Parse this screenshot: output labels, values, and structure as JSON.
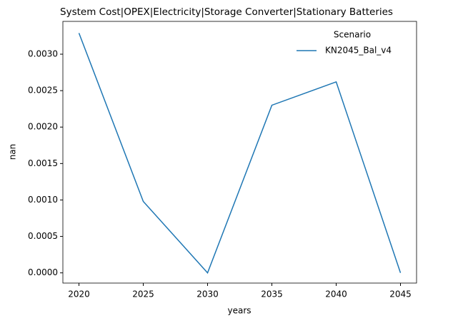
{
  "chart_data": {
    "type": "line",
    "title": "System Cost|OPEX|Electricity|Storage Converter|Stationary Batteries",
    "x_label": "years",
    "y_label": "nan",
    "x": [
      2020,
      2025,
      2030,
      2035,
      2040,
      2045
    ],
    "series": [
      {
        "name": "KN2045_Bal_v4",
        "color": "#1f77b4",
        "values": [
          0.00329,
          0.00098,
          0,
          0.0023,
          0.00262,
          0
        ]
      }
    ],
    "legend_title": "Scenario",
    "legend": "upper right",
    "xlim": [
      2018.75,
      2046.25
    ],
    "xticks": [
      2020,
      2025,
      2030,
      2035,
      2040,
      2045
    ],
    "ylim": [
      -0.00014,
      0.00345
    ],
    "yticks": [
      {
        "value": 0,
        "label": "0.0000"
      },
      {
        "value": 0.0005,
        "label": "0.0005"
      },
      {
        "value": 0.001,
        "label": "0.0010"
      },
      {
        "value": 0.0015,
        "label": "0.0015"
      },
      {
        "value": 0.002,
        "label": "0.0020"
      },
      {
        "value": 0.0025,
        "label": "0.0025"
      },
      {
        "value": 0.003,
        "label": "0.0030"
      }
    ],
    "grid": false
  }
}
